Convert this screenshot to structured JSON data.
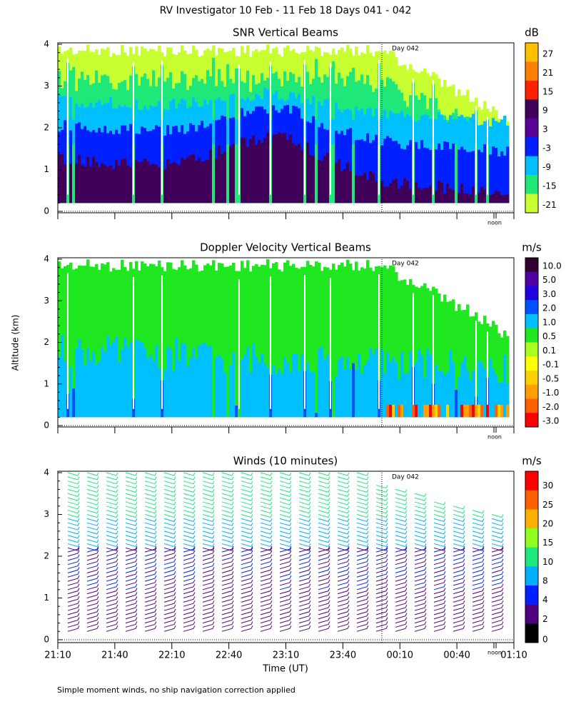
{
  "title": "RV Investigator  10 Feb - 11 Feb 18 Days 041 - 042",
  "y_axis_label": "Altitude (km)",
  "x_axis_label": "Time (UT)",
  "footnote": "Simple moment winds, no ship navigation correction applied",
  "x_tick_labels": [
    "21:10",
    "21:40",
    "22:10",
    "22:40",
    "23:10",
    "23:40",
    "00:10",
    "00:40",
    "01:10"
  ],
  "panels": [
    {
      "title": "SNR Vertical Beams",
      "unit": "dB",
      "day_marker": "Day 042",
      "noon_label": "noon",
      "yticks": [
        0,
        1,
        2,
        3,
        4
      ],
      "colorbar": {
        "labels": [
          "27",
          "21",
          "15",
          "9",
          "3",
          "-3",
          "-9",
          "-15",
          "-21"
        ],
        "colors": [
          "#ffc000",
          "#ff8000",
          "#ff2000",
          "#40005a",
          "#5a0096",
          "#0020ff",
          "#00c0ff",
          "#20e878",
          "#c8ff30"
        ]
      }
    },
    {
      "title": "Doppler Velocity Vertical Beams",
      "unit": "m/s",
      "day_marker": "Day 042",
      "noon_label": "noon",
      "yticks": [
        0,
        1,
        2,
        3,
        4
      ],
      "colorbar": {
        "labels": [
          "10.0",
          "5.0",
          "3.0",
          "2.0",
          "1.0",
          "0.5",
          "0.1",
          "-0.1",
          "-0.5",
          "-1.0",
          "-2.0",
          "-3.0"
        ],
        "colors": [
          "#300030",
          "#5000a0",
          "#2000e0",
          "#0050ff",
          "#00c0ff",
          "#20e820",
          "#a8ff20",
          "#ffff00",
          "#ffd000",
          "#ffa000",
          "#ff6000",
          "#ff0000"
        ]
      }
    },
    {
      "title": "Winds (10 minutes)",
      "unit": "m/s",
      "day_marker": "Day 042",
      "noon_label": "noon",
      "yticks": [
        0,
        1,
        2,
        3,
        4
      ],
      "colorbar": {
        "labels": [
          "30",
          "25",
          "20",
          "15",
          "10",
          "8",
          "4",
          "2",
          "0"
        ],
        "colors": [
          "#ff0000",
          "#ff6000",
          "#ffb000",
          "#90ff20",
          "#20e880",
          "#00b0ff",
          "#0020ff",
          "#500080",
          "#000000"
        ]
      }
    }
  ]
}
